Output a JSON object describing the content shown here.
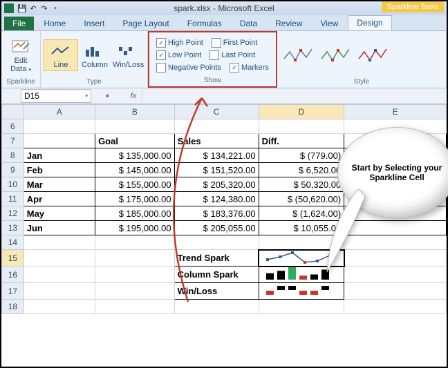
{
  "window": {
    "title": "spark.xlsx - Microsoft Excel",
    "contextTab": "Sparkline Tools"
  },
  "tabs": {
    "file": "File",
    "home": "Home",
    "insert": "Insert",
    "pageLayout": "Page Layout",
    "formulas": "Formulas",
    "data": "Data",
    "review": "Review",
    "view": "View",
    "design": "Design"
  },
  "ribbon": {
    "editData": "Edit Data",
    "sparklineGrp": "Sparkline",
    "line": "Line",
    "column": "Column",
    "winloss": "Win/Loss",
    "typeGrp": "Type",
    "highPoint": "High Point",
    "lowPoint": "Low Point",
    "negPoints": "Negative Points",
    "firstPoint": "First Point",
    "lastPoint": "Last Point",
    "markers": "Markers",
    "showGrp": "Show",
    "styleGrp": "Style",
    "checks": {
      "highPoint": true,
      "lowPoint": true,
      "negPoints": false,
      "firstPoint": false,
      "lastPoint": false,
      "markers": true
    }
  },
  "nameBox": "D15",
  "fx": "fx",
  "columns": [
    "A",
    "B",
    "C",
    "D",
    "E"
  ],
  "rowStart": 6,
  "rowEnd": 18,
  "headers": {
    "goal": "Goal",
    "sales": "Sales",
    "diff": "Diff."
  },
  "months": [
    {
      "m": "Jan",
      "goal": "$ 135,000.00",
      "sales": "$ 134,221.00",
      "diff": "$      (779.00)"
    },
    {
      "m": "Feb",
      "goal": "$ 145,000.00",
      "sales": "$ 151,520.00",
      "diff": "$    6,520.00"
    },
    {
      "m": "Mar",
      "goal": "$ 155,000.00",
      "sales": "$ 205,320.00",
      "diff": "$  50,320.00"
    },
    {
      "m": "Apr",
      "goal": "$ 175,000.00",
      "sales": "$ 124,380.00",
      "diff": "$ (50,620.00)"
    },
    {
      "m": "May",
      "goal": "$ 185,000.00",
      "sales": "$ 183,376.00",
      "diff": "$  (1,624.00)"
    },
    {
      "m": "Jun",
      "goal": "$ 195,000.00",
      "sales": "$ 205,055.00",
      "diff": "$  10,055.00"
    }
  ],
  "sparkLabels": {
    "trend": "Trend Spark",
    "column": "Column Spark",
    "winloss": "Win/Loss"
  },
  "callout": "Start by Selecting your Sparkline Cell",
  "sparkline": {
    "values": [
      3,
      5,
      8,
      1,
      2,
      6
    ],
    "lineColor": "#2f5b8f",
    "markerColor": "#2f5b8f",
    "lowColor": "#c0392b",
    "highColor": "#2f5b8f",
    "colColors": [
      "#000",
      "#000",
      "#27ae60",
      "#c0392b",
      "#000",
      "#000"
    ],
    "wlColors": [
      "#c0392b",
      "#000",
      "#000",
      "#c0392b",
      "#c0392b",
      "#000"
    ]
  },
  "styleThumbs": [
    {
      "line": "#5b7ca0",
      "hi": "#c0392b"
    },
    {
      "line": "#4a8c5e",
      "hi": "#c0392b"
    },
    {
      "line": "#b02e2e",
      "hi": "#2f5b8f"
    }
  ]
}
